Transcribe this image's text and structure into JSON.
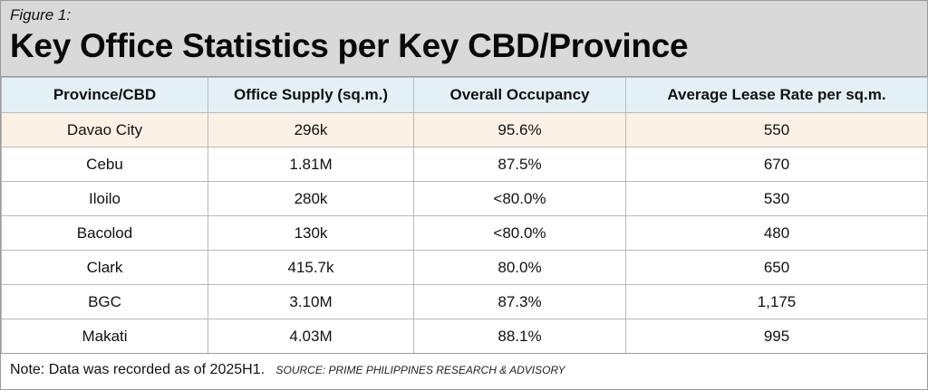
{
  "figure_label": "Figure 1:",
  "title": "Key Office Statistics per Key CBD/Province",
  "note": "Note: Data was recorded as of 2025H1.",
  "source": "SOURCE: PRIME PHILIPPINES RESEARCH & ADVISORY",
  "colors": {
    "header_bg": "#d9d9d9",
    "table_header_bg": "#e3f1f7",
    "highlight_row_bg": "#fbf1e4"
  },
  "chart_data": {
    "type": "table",
    "title": "Key Office Statistics per Key CBD/Province",
    "columns": [
      "Province/CBD",
      "Office Supply (sq.m.)",
      "Overall Occupancy",
      "Average Lease Rate per sq.m."
    ],
    "rows": [
      [
        "Davao City",
        "296k",
        "95.6%",
        "550"
      ],
      [
        "Cebu",
        "1.81M",
        "87.5%",
        "670"
      ],
      [
        "Iloilo",
        "280k",
        "<80.0%",
        "530"
      ],
      [
        "Bacolod",
        "130k",
        "<80.0%",
        "480"
      ],
      [
        "Clark",
        "415.7k",
        "80.0%",
        "650"
      ],
      [
        "BGC",
        "3.10M",
        "87.3%",
        "1,175"
      ],
      [
        "Makati",
        "4.03M",
        "88.1%",
        "995"
      ]
    ],
    "highlighted_row": "Davao City"
  }
}
